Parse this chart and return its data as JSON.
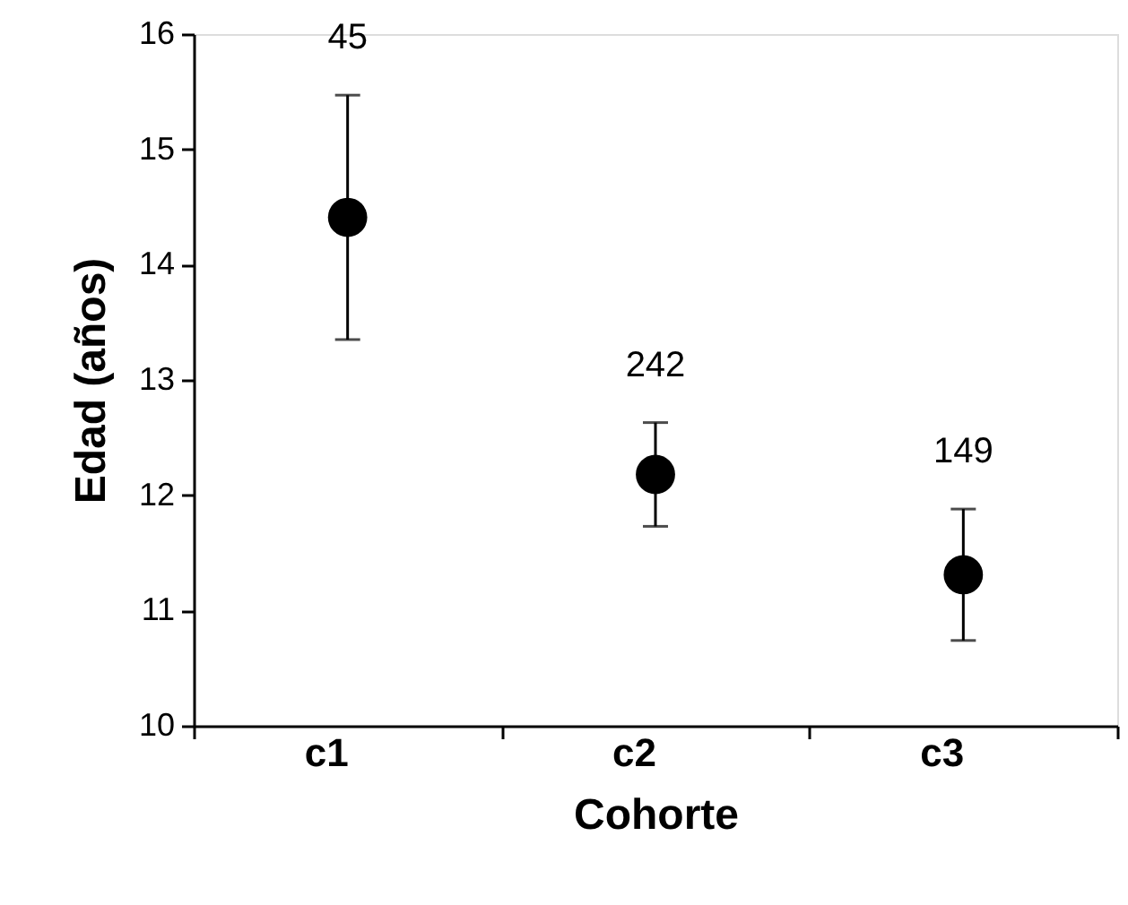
{
  "chart_data": {
    "type": "scatter",
    "xlabel": "Cohorte",
    "ylabel": "Edad (años)",
    "categories": [
      "c1",
      "c2",
      "c3"
    ],
    "values": [
      14.41,
      12.18,
      11.31
    ],
    "errors": [
      1.06,
      0.45,
      0.57
    ],
    "color": "#000000",
    "marker": "circle",
    "ylim": [
      10,
      16
    ],
    "yticks": [
      10,
      11,
      12,
      13,
      14,
      15,
      16
    ],
    "grid": false,
    "annotations": [
      "45",
      "242",
      "149"
    ]
  }
}
